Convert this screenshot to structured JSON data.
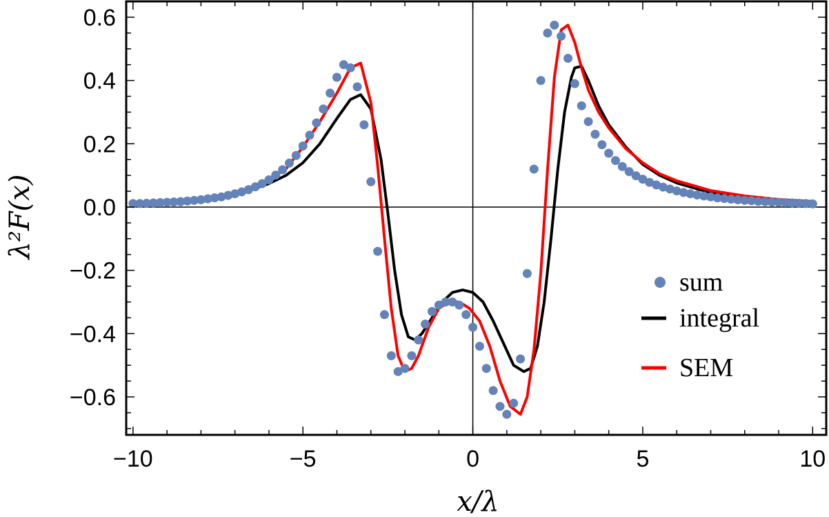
{
  "chart_data": {
    "type": "line",
    "xlabel": "x/λ",
    "ylabel": "λ²F(x)",
    "xlim": [
      -10.2,
      10.4
    ],
    "ylim": [
      -0.72,
      0.65
    ],
    "x_ticks": [
      "−10",
      "−5",
      "0",
      "5",
      "10"
    ],
    "x_tick_values": [
      -10,
      -5,
      0,
      5,
      10
    ],
    "y_ticks": [
      "−0.6",
      "−0.4",
      "−0.2",
      "0.0",
      "0.2",
      "0.4",
      "0.6"
    ],
    "y_tick_values": [
      -0.6,
      -0.4,
      -0.2,
      0.0,
      0.2,
      0.4,
      0.6
    ],
    "legend_position": "right",
    "series": [
      {
        "name": "sum",
        "style": "points",
        "color": "#6383b9",
        "x": [
          -10.0,
          -9.8,
          -9.6,
          -9.4,
          -9.2,
          -9.0,
          -8.8,
          -8.6,
          -8.4,
          -8.2,
          -8.0,
          -7.8,
          -7.6,
          -7.4,
          -7.2,
          -7.0,
          -6.8,
          -6.6,
          -6.4,
          -6.2,
          -6.0,
          -5.8,
          -5.6,
          -5.4,
          -5.2,
          -5.0,
          -4.8,
          -4.6,
          -4.4,
          -4.2,
          -4.0,
          -3.8,
          -3.6,
          -3.4,
          -3.2,
          -3.0,
          -2.8,
          -2.6,
          -2.4,
          -2.2,
          -2.0,
          -1.8,
          -1.6,
          -1.4,
          -1.2,
          -1.0,
          -0.8,
          -0.6,
          -0.4,
          -0.2,
          0.0,
          0.2,
          0.4,
          0.6,
          0.8,
          1.0,
          1.2,
          1.4,
          1.6,
          1.8,
          2.0,
          2.2,
          2.4,
          2.6,
          2.8,
          3.0,
          3.2,
          3.4,
          3.6,
          3.8,
          4.0,
          4.2,
          4.4,
          4.6,
          4.8,
          5.0,
          5.2,
          5.4,
          5.6,
          5.8,
          6.0,
          6.2,
          6.4,
          6.6,
          6.8,
          7.0,
          7.2,
          7.4,
          7.6,
          7.8,
          8.0,
          8.2,
          8.4,
          8.6,
          8.8,
          9.0,
          9.2,
          9.4,
          9.6,
          9.8,
          10.0
        ],
        "y": [
          0.011,
          0.011,
          0.012,
          0.013,
          0.014,
          0.015,
          0.016,
          0.017,
          0.019,
          0.021,
          0.023,
          0.026,
          0.029,
          0.032,
          0.037,
          0.042,
          0.048,
          0.055,
          0.064,
          0.074,
          0.086,
          0.101,
          0.118,
          0.139,
          0.163,
          0.193,
          0.227,
          0.266,
          0.31,
          0.36,
          0.41,
          0.45,
          0.44,
          0.38,
          0.26,
          0.08,
          -0.14,
          -0.34,
          -0.47,
          -0.52,
          -0.51,
          -0.47,
          -0.42,
          -0.37,
          -0.33,
          -0.31,
          -0.3,
          -0.3,
          -0.31,
          -0.34,
          -0.38,
          -0.44,
          -0.51,
          -0.58,
          -0.63,
          -0.655,
          -0.62,
          -0.48,
          -0.21,
          0.12,
          0.4,
          0.55,
          0.575,
          0.54,
          0.47,
          0.39,
          0.32,
          0.27,
          0.23,
          0.197,
          0.17,
          0.147,
          0.128,
          0.112,
          0.099,
          0.088,
          0.078,
          0.07,
          0.063,
          0.057,
          0.051,
          0.046,
          0.042,
          0.038,
          0.035,
          0.032,
          0.029,
          0.027,
          0.025,
          0.023,
          0.021,
          0.02,
          0.018,
          0.017,
          0.016,
          0.015,
          0.014,
          0.013,
          0.012,
          0.011,
          0.01
        ]
      },
      {
        "name": "integral",
        "style": "line",
        "color": "#000000",
        "x": [
          -10.0,
          -9.0,
          -8.0,
          -7.0,
          -6.0,
          -5.5,
          -5.0,
          -4.5,
          -4.0,
          -3.6,
          -3.3,
          -3.0,
          -2.7,
          -2.5,
          -2.3,
          -2.1,
          -1.9,
          -1.7,
          -1.5,
          -1.2,
          -0.9,
          -0.6,
          -0.3,
          0.0,
          0.3,
          0.6,
          0.9,
          1.2,
          1.5,
          1.7,
          1.9,
          2.1,
          2.3,
          2.5,
          2.7,
          2.9,
          3.0,
          3.2,
          3.4,
          3.7,
          4.0,
          4.5,
          5.0,
          5.5,
          6.0,
          7.0,
          8.0,
          9.0,
          10.0
        ],
        "y": [
          0.011,
          0.014,
          0.021,
          0.037,
          0.074,
          0.1,
          0.14,
          0.2,
          0.28,
          0.34,
          0.355,
          0.31,
          0.15,
          -0.02,
          -0.2,
          -0.34,
          -0.41,
          -0.42,
          -0.4,
          -0.35,
          -0.3,
          -0.27,
          -0.262,
          -0.27,
          -0.3,
          -0.36,
          -0.43,
          -0.5,
          -0.52,
          -0.51,
          -0.44,
          -0.3,
          -0.1,
          0.12,
          0.3,
          0.41,
          0.44,
          0.445,
          0.4,
          0.32,
          0.26,
          0.19,
          0.135,
          0.1,
          0.076,
          0.045,
          0.03,
          0.021,
          0.016
        ]
      },
      {
        "name": "SEM",
        "style": "line",
        "color": "#ff0000",
        "x": [
          -10.0,
          -9.0,
          -8.0,
          -7.0,
          -6.0,
          -5.5,
          -5.0,
          -4.5,
          -4.0,
          -3.6,
          -3.3,
          -3.0,
          -2.8,
          -2.6,
          -2.4,
          -2.2,
          -2.0,
          -1.8,
          -1.6,
          -1.3,
          -1.0,
          -0.7,
          -0.4,
          -0.1,
          0.2,
          0.5,
          0.8,
          1.1,
          1.4,
          1.6,
          1.8,
          2.0,
          2.2,
          2.4,
          2.6,
          2.8,
          3.0,
          3.2,
          3.4,
          3.7,
          4.0,
          4.5,
          5.0,
          5.5,
          6.0,
          7.0,
          8.0,
          9.0,
          10.0
        ],
        "y": [
          0.011,
          0.015,
          0.023,
          0.042,
          0.086,
          0.12,
          0.19,
          0.27,
          0.36,
          0.44,
          0.455,
          0.33,
          0.13,
          -0.1,
          -0.32,
          -0.47,
          -0.52,
          -0.51,
          -0.47,
          -0.38,
          -0.32,
          -0.3,
          -0.3,
          -0.32,
          -0.36,
          -0.44,
          -0.55,
          -0.63,
          -0.655,
          -0.6,
          -0.45,
          -0.21,
          0.12,
          0.41,
          0.56,
          0.575,
          0.52,
          0.44,
          0.37,
          0.3,
          0.25,
          0.185,
          0.14,
          0.105,
          0.083,
          0.052,
          0.035,
          0.024,
          0.018
        ]
      }
    ]
  }
}
